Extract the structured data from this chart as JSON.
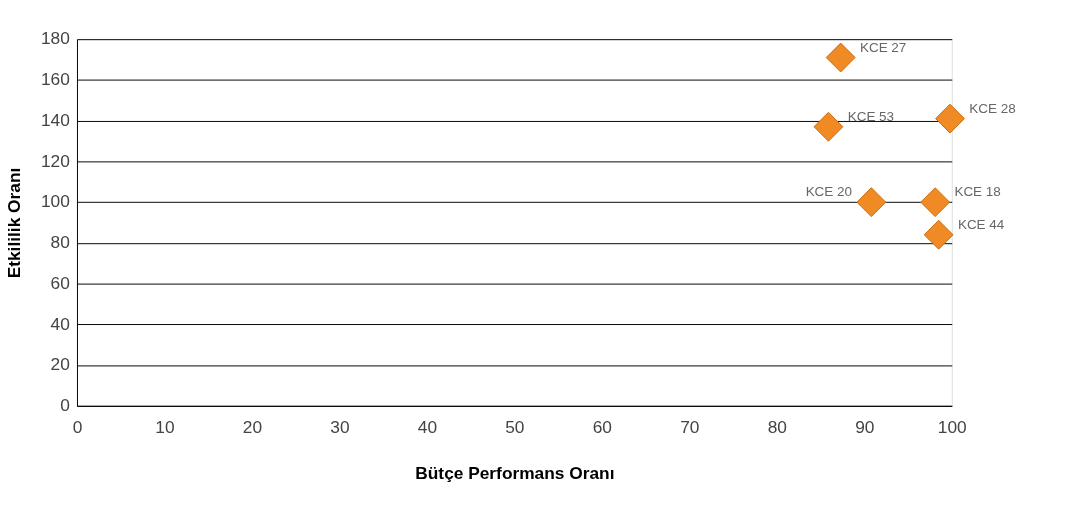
{
  "chart_data": {
    "type": "scatter",
    "xlabel": "Bütçe Performans Oranı",
    "ylabel": "Etkililik Oranı",
    "x": [
      87.3,
      85.9,
      99.8,
      90.8,
      98.1,
      98.5
    ],
    "series": [
      {
        "color": "#f08a24",
        "values": [
          171,
          137,
          141,
          100,
          100,
          84
        ]
      }
    ],
    "xlim": [
      0,
      100
    ],
    "xticks": [
      0,
      10,
      20,
      30,
      40,
      50,
      60,
      70,
      80,
      90,
      100
    ],
    "ylim": [
      0,
      180
    ],
    "yticks": [
      0,
      20,
      40,
      60,
      80,
      100,
      120,
      140,
      160,
      180
    ],
    "grid": "y",
    "marker": "diamond",
    "annotations": [
      {
        "text": "KCE 27",
        "x": 87.3,
        "y": 171
      },
      {
        "text": "KCE 53",
        "x": 85.9,
        "y": 137
      },
      {
        "text": "KCE 28",
        "x": 99.8,
        "y": 141
      },
      {
        "text": "KCE 20",
        "x": 90.8,
        "y": 100
      },
      {
        "text": "KCE 18",
        "x": 98.1,
        "y": 100
      },
      {
        "text": "KCE 44",
        "x": 98.5,
        "y": 84
      }
    ]
  }
}
